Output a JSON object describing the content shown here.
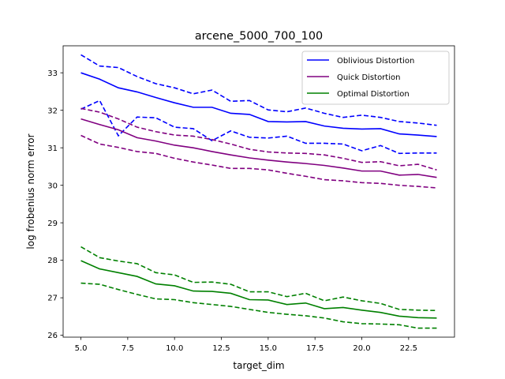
{
  "chart_data": {
    "type": "line",
    "title": "arcene_5000_700_100",
    "xlabel": "target_dim",
    "ylabel": "log frobenius norm error",
    "xlim": [
      4.05,
      24.95
    ],
    "ylim": [
      25.95,
      33.72
    ],
    "xticks": [
      5.0,
      7.5,
      10.0,
      12.5,
      15.0,
      17.5,
      20.0,
      22.5
    ],
    "xtick_labels": [
      "5.0",
      "7.5",
      "10.0",
      "12.5",
      "15.0",
      "17.5",
      "20.0",
      "22.5"
    ],
    "yticks": [
      26,
      27,
      28,
      29,
      30,
      31,
      32,
      33
    ],
    "ytick_labels": [
      "26",
      "27",
      "28",
      "29",
      "30",
      "31",
      "32",
      "33"
    ],
    "legend_position": "top-right",
    "x": [
      5,
      6,
      7,
      8,
      9,
      10,
      11,
      12,
      13,
      14,
      15,
      16,
      17,
      18,
      19,
      20,
      21,
      22,
      23,
      24
    ],
    "series": [
      {
        "name": "Oblivious Distortion",
        "color": "#0000ff",
        "values": [
          33.0,
          32.83,
          32.6,
          32.49,
          32.34,
          32.2,
          32.08,
          32.08,
          31.92,
          31.89,
          31.7,
          31.69,
          31.7,
          31.58,
          31.52,
          31.5,
          31.51,
          31.37,
          31.34,
          31.3
        ],
        "upper": [
          33.48,
          33.18,
          33.14,
          32.9,
          32.71,
          32.6,
          32.44,
          32.54,
          32.24,
          32.26,
          32.01,
          31.96,
          32.06,
          31.92,
          31.81,
          31.87,
          31.81,
          31.7,
          31.66,
          31.6
        ],
        "lower": [
          32.03,
          32.26,
          31.32,
          31.82,
          31.8,
          31.55,
          31.51,
          31.19,
          31.45,
          31.28,
          31.26,
          31.31,
          31.12,
          31.12,
          31.1,
          30.92,
          31.06,
          30.85,
          30.86,
          30.86
        ]
      },
      {
        "name": "Quick Distortion",
        "color": "#800080",
        "values": [
          31.77,
          31.62,
          31.48,
          31.27,
          31.18,
          31.07,
          31.0,
          30.9,
          30.81,
          30.73,
          30.67,
          30.62,
          30.58,
          30.53,
          30.46,
          30.38,
          30.38,
          30.27,
          30.29,
          30.21
        ],
        "upper": [
          32.05,
          31.95,
          31.77,
          31.55,
          31.43,
          31.34,
          31.31,
          31.22,
          31.1,
          30.96,
          30.89,
          30.86,
          30.85,
          30.81,
          30.72,
          30.61,
          30.63,
          30.52,
          30.56,
          30.41
        ],
        "lower": [
          31.33,
          31.1,
          31.01,
          30.9,
          30.85,
          30.72,
          30.62,
          30.54,
          30.45,
          30.45,
          30.41,
          30.32,
          30.24,
          30.15,
          30.12,
          30.07,
          30.05,
          30.0,
          29.97,
          29.93
        ]
      },
      {
        "name": "Optimal Distortion",
        "color": "#008000",
        "values": [
          27.99,
          27.77,
          27.67,
          27.57,
          27.37,
          27.32,
          27.18,
          27.17,
          27.12,
          26.95,
          26.94,
          26.82,
          26.86,
          26.71,
          26.74,
          26.67,
          26.61,
          26.51,
          26.47,
          26.46
        ],
        "upper": [
          28.36,
          28.07,
          27.98,
          27.91,
          27.67,
          27.61,
          27.41,
          27.42,
          27.36,
          27.16,
          27.16,
          27.03,
          27.12,
          26.92,
          27.02,
          26.92,
          26.85,
          26.69,
          26.67,
          26.66
        ],
        "lower": [
          27.39,
          27.36,
          27.22,
          27.09,
          26.97,
          26.95,
          26.87,
          26.82,
          26.77,
          26.69,
          26.61,
          26.56,
          26.52,
          26.46,
          26.36,
          26.31,
          26.3,
          26.28,
          26.19,
          26.19
        ]
      }
    ]
  }
}
